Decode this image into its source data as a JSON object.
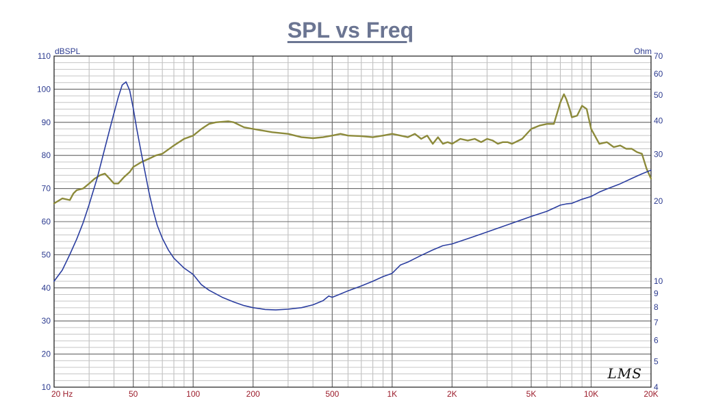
{
  "chart_data": {
    "type": "line",
    "title": "SPL vs Freq",
    "ylabel": "dBSPL",
    "y2label": "Ohm",
    "x_scale": "log",
    "xlim": [
      20,
      20000
    ],
    "ylim": [
      10,
      110
    ],
    "y2lim": [
      4,
      70
    ],
    "y2_scale": "log",
    "x_ticks": [
      {
        "value": 20,
        "label": "20  Hz"
      },
      {
        "value": 50,
        "label": "50"
      },
      {
        "value": 100,
        "label": "100"
      },
      {
        "value": 200,
        "label": "200"
      },
      {
        "value": 500,
        "label": "500"
      },
      {
        "value": 1000,
        "label": "1K"
      },
      {
        "value": 2000,
        "label": "2K"
      },
      {
        "value": 5000,
        "label": "5K"
      },
      {
        "value": 10000,
        "label": "10K"
      },
      {
        "value": 20000,
        "label": "20K"
      }
    ],
    "y_ticks": [
      10,
      20,
      30,
      40,
      50,
      60,
      70,
      80,
      90,
      100,
      110
    ],
    "y2_ticks": [
      4,
      5,
      6,
      7,
      8,
      9,
      10,
      20,
      30,
      40,
      50,
      60,
      70
    ],
    "grid": true,
    "series": [
      {
        "axis": "left",
        "color": "#8c8a3a",
        "x": [
          20,
          22,
          24,
          25,
          26,
          28,
          30,
          32,
          34,
          36,
          38,
          40,
          42,
          45,
          48,
          50,
          55,
          60,
          65,
          70,
          80,
          90,
          100,
          110,
          120,
          130,
          150,
          160,
          180,
          200,
          250,
          300,
          350,
          400,
          450,
          500,
          550,
          600,
          700,
          800,
          900,
          1000,
          1100,
          1200,
          1300,
          1400,
          1500,
          1600,
          1700,
          1800,
          1900,
          2000,
          2200,
          2400,
          2600,
          2800,
          3000,
          3200,
          3400,
          3600,
          3800,
          4000,
          4500,
          5000,
          5500,
          6000,
          6500,
          7000,
          7300,
          7500,
          7800,
          8000,
          8500,
          9000,
          9500,
          10000,
          11000,
          12000,
          13000,
          14000,
          15000,
          16000,
          17000,
          18000,
          19000,
          20000
        ],
        "y": [
          65.5,
          67,
          66.5,
          68.5,
          69.5,
          70,
          71.5,
          73,
          74,
          74.5,
          73,
          71.5,
          71.5,
          73.5,
          75,
          76.5,
          78,
          79,
          80,
          80.5,
          83,
          85,
          86,
          88,
          89.5,
          90,
          90.3,
          90,
          88.5,
          88,
          87,
          86.5,
          85.5,
          85.2,
          85.5,
          86,
          86.5,
          86,
          85.8,
          85.5,
          86,
          86.5,
          86,
          85.5,
          86.5,
          85,
          86,
          83.5,
          85.5,
          83.5,
          84,
          83.5,
          85,
          84.5,
          85,
          84,
          85,
          84.5,
          83.5,
          84,
          84,
          83.5,
          85,
          88,
          89,
          89.5,
          89.5,
          96,
          98.5,
          97,
          94,
          91.5,
          92,
          95,
          94,
          88,
          83.5,
          84,
          82.5,
          83,
          82,
          82,
          81,
          80.5,
          76,
          73
        ]
      },
      {
        "axis": "right",
        "color": "#2a3d9f",
        "x": [
          20,
          22,
          24,
          26,
          28,
          30,
          33,
          36,
          39,
          42,
          44,
          46,
          48,
          50,
          52,
          55,
          58,
          60,
          63,
          66,
          70,
          75,
          80,
          90,
          100,
          110,
          120,
          140,
          160,
          180,
          200,
          230,
          260,
          300,
          350,
          400,
          450,
          480,
          500,
          550,
          600,
          700,
          800,
          900,
          1000,
          1100,
          1200,
          1400,
          1600,
          1800,
          2000,
          2500,
          3000,
          4000,
          5000,
          6000,
          7000,
          7500,
          8000,
          9000,
          10000,
          11000,
          12000,
          14000,
          16000,
          18000,
          20000
        ],
        "y": [
          10,
          11,
          12.6,
          14.4,
          16.6,
          19.4,
          24.5,
          31.6,
          39.8,
          49,
          54.5,
          56,
          52,
          44.5,
          37.5,
          30,
          24.5,
          21.5,
          18.4,
          16.2,
          14.5,
          13.1,
          12.2,
          11.2,
          10.6,
          9.7,
          9.25,
          8.7,
          8.35,
          8.1,
          7.95,
          7.83,
          7.8,
          7.85,
          7.95,
          8.15,
          8.45,
          8.8,
          8.7,
          8.95,
          9.2,
          9.6,
          10,
          10.4,
          10.7,
          11.5,
          11.8,
          12.5,
          13.1,
          13.6,
          13.8,
          14.6,
          15.3,
          16.5,
          17.5,
          18.3,
          19.3,
          19.5,
          19.6,
          20.3,
          20.8,
          21.6,
          22.2,
          23.2,
          24.3,
          25.3,
          26.1
        ]
      }
    ]
  },
  "logo_text": "LMS"
}
